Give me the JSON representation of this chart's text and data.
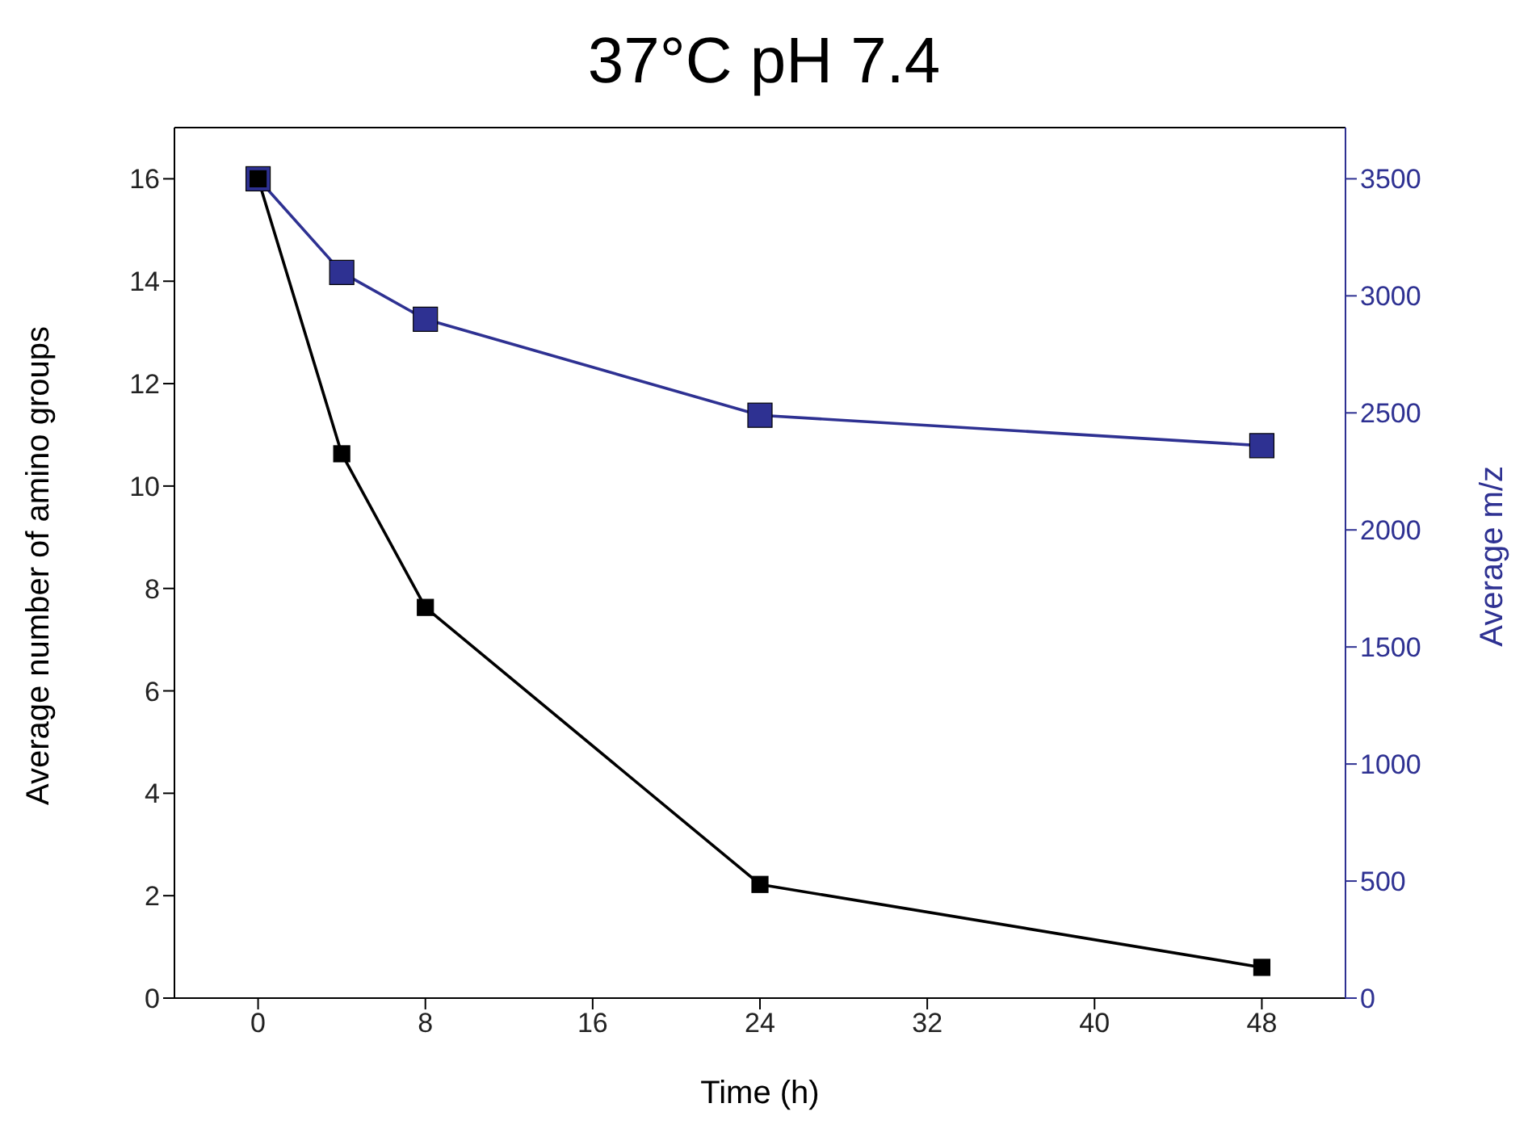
{
  "chart_data": {
    "type": "line",
    "title": "37°C pH 7.4",
    "xlabel": "Time (h)",
    "ylabel": "Average number of amino groups",
    "y2label": "Average m/z",
    "x": [
      0,
      4,
      8,
      24,
      48
    ],
    "series": [
      {
        "color": "#000000",
        "values": [
          16.0,
          10.63,
          7.63,
          2.22,
          0.6
        ]
      },
      {
        "color": "#2e3192",
        "axis": "y2",
        "values": [
          3500,
          3100,
          2900,
          2490,
          2360
        ]
      }
    ],
    "xlim": [
      -4,
      52
    ],
    "xticks": [
      0,
      8,
      16,
      24,
      32,
      40,
      48
    ],
    "ylim": [
      0,
      17
    ],
    "yticks": [
      0,
      2,
      4,
      6,
      8,
      10,
      12,
      14,
      16
    ],
    "y2lim": [
      0,
      3718.75
    ],
    "y2ticks": [
      0,
      500,
      1000,
      1500,
      2000,
      2500,
      3000,
      3500
    ],
    "marker": "square",
    "line_style": "solid",
    "grid": false,
    "legend": false
  }
}
